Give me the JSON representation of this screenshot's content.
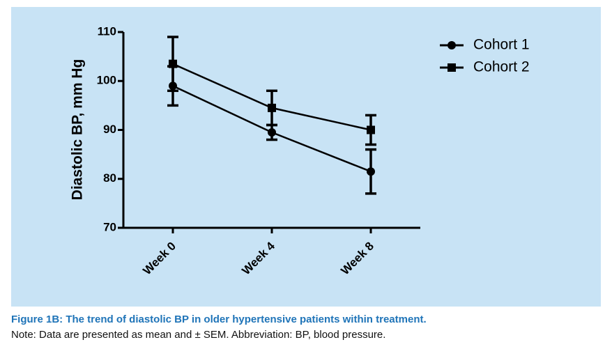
{
  "chart_data": {
    "type": "line",
    "y_label": "Diastolic BP, mm Hg",
    "categories": [
      "Week 0",
      "Week 4",
      "Week 8"
    ],
    "series": [
      {
        "name": "Cohort 1",
        "color": "#000000",
        "marker": "circle",
        "values": [
          99,
          89.5,
          81.5
        ],
        "errors": [
          4,
          1.5,
          4.5
        ]
      },
      {
        "name": "Cohort 2",
        "color": "#000000",
        "marker": "square",
        "values": [
          103.5,
          94.5,
          90
        ],
        "errors": [
          5.5,
          3.5,
          3
        ]
      }
    ],
    "ylim": [
      70,
      110
    ],
    "yticks": [
      70,
      80,
      90,
      100,
      110
    ],
    "grid": false,
    "legend": "top-right",
    "background": "#c8e3f5"
  },
  "figure": {
    "caption": "Figure 1B: The trend of diastolic BP in older hypertensive patients within treatment.",
    "note": "Note: Data are presented as mean and  ± SEM. Abbreviation: BP, blood pressure."
  }
}
